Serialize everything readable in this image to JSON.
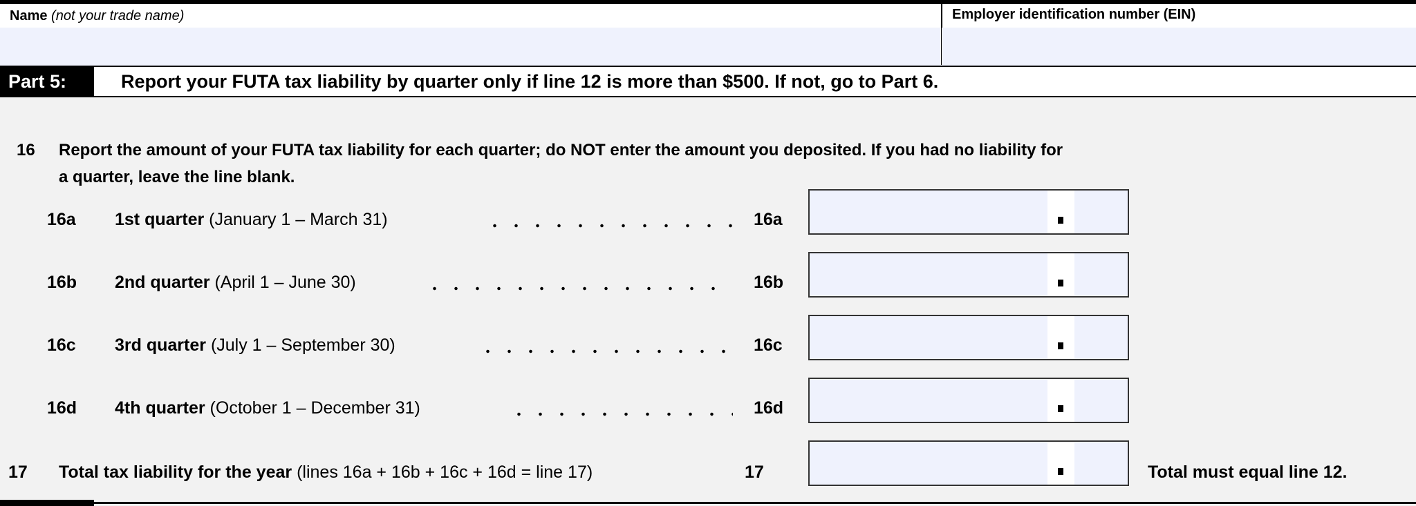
{
  "header": {
    "name_label": "Name",
    "name_hint": "(not your trade name)",
    "ein_label": "Employer identification number (EIN)",
    "name_value": "",
    "ein_value": ""
  },
  "part": {
    "label": "Part 5:",
    "title": "Report your FUTA tax liability by quarter only if line 12 is more than $500. If not, go to Part 6."
  },
  "line16": {
    "number": "16",
    "text1": "Report the amount of your FUTA tax liability for each quarter; do NOT enter the amount you deposited. If you had no liability for",
    "text2": "a quarter, leave the line blank."
  },
  "rows": [
    {
      "id": "16a",
      "label": "1st quarter",
      "period": "(January 1 – March 31)",
      "value": ""
    },
    {
      "id": "16b",
      "label": "2nd quarter",
      "period": "(April 1 – June 30)",
      "value": ""
    },
    {
      "id": "16c",
      "label": "3rd quarter",
      "period": "(July 1 – September 30)",
      "value": ""
    },
    {
      "id": "16d",
      "label": "4th quarter",
      "period": "(October 1 – December 31)",
      "value": ""
    }
  ],
  "line17": {
    "id": "17",
    "label": "Total tax liability for the year",
    "formula": "(lines 16a + 16b + 16c + 16d = line 17)",
    "note": "Total must equal line 12.",
    "value": ""
  },
  "colors": {
    "field_bg": "#eff2fd",
    "page_bg": "#f2f2f2"
  }
}
